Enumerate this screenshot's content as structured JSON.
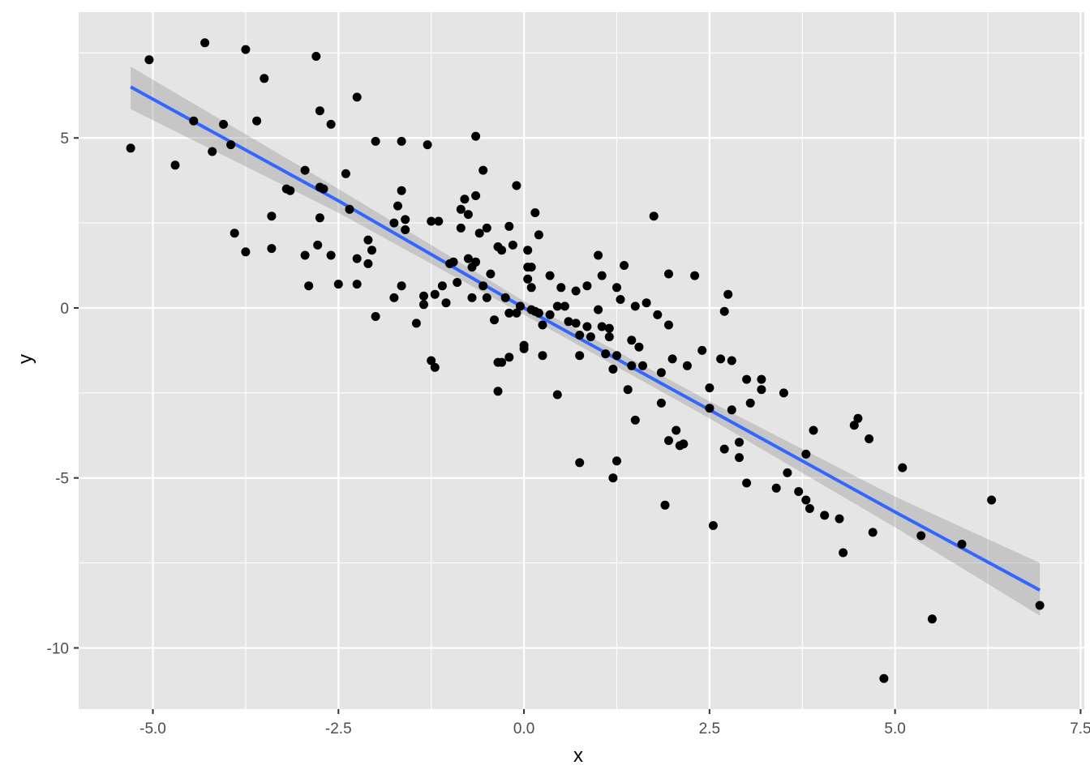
{
  "chart_data": {
    "type": "scatter",
    "title": "",
    "xlabel": "x",
    "ylabel": "y",
    "xlim": [
      -6.0,
      7.55
    ],
    "ylim": [
      -11.8,
      8.7
    ],
    "x_ticks": [
      -5.0,
      -2.5,
      0.0,
      2.5,
      5.0,
      7.5
    ],
    "x_tick_labels": [
      "-5.0",
      "-2.5",
      "0.0",
      "2.5",
      "5.0",
      "7.5"
    ],
    "y_ticks": [
      -10,
      -5,
      0,
      5
    ],
    "y_tick_labels": [
      "-10",
      "-5",
      "0",
      "5"
    ],
    "grid": true,
    "legend": "none",
    "colors": {
      "panel_background": "#e5e5e5",
      "grid_major": "#ffffff",
      "points": "#000000",
      "smooth_line": "#3366ff",
      "confidence_band": "#999999"
    },
    "smooth": {
      "method": "lm",
      "x": [
        -5.3,
        -2.5,
        0.0,
        2.5,
        5.0,
        6.95
      ],
      "y": [
        6.5,
        3.15,
        0.0,
        -3.0,
        -6.0,
        -8.3
      ],
      "ci_lower": [
        5.85,
        2.8,
        -0.2,
        -3.25,
        -6.45,
        -9.05
      ],
      "ci_upper": [
        7.1,
        3.5,
        0.2,
        -2.75,
        -5.55,
        -7.5
      ]
    },
    "series": [
      {
        "points": [
          [
            -5.3,
            4.7
          ],
          [
            -5.05,
            7.3
          ],
          [
            -4.7,
            4.2
          ],
          [
            -4.3,
            7.8
          ],
          [
            -4.45,
            5.5
          ],
          [
            -4.2,
            4.6
          ],
          [
            -4.05,
            5.4
          ],
          [
            -3.95,
            4.8
          ],
          [
            -3.9,
            2.2
          ],
          [
            -3.75,
            7.6
          ],
          [
            -3.75,
            1.65
          ],
          [
            -3.6,
            5.5
          ],
          [
            -3.5,
            6.75
          ],
          [
            -3.4,
            2.7
          ],
          [
            -3.4,
            1.75
          ],
          [
            -3.2,
            3.5
          ],
          [
            -3.15,
            3.45
          ],
          [
            -2.95,
            4.05
          ],
          [
            -2.95,
            1.55
          ],
          [
            -2.9,
            0.65
          ],
          [
            -2.8,
            7.4
          ],
          [
            -2.75,
            5.8
          ],
          [
            -2.78,
            1.85
          ],
          [
            -2.75,
            3.55
          ],
          [
            -2.75,
            2.65
          ],
          [
            -2.7,
            3.5
          ],
          [
            -2.6,
            5.4
          ],
          [
            -2.6,
            1.55
          ],
          [
            -2.5,
            0.7
          ],
          [
            -2.4,
            3.95
          ],
          [
            -2.35,
            2.9
          ],
          [
            -2.25,
            6.2
          ],
          [
            -2.25,
            1.45
          ],
          [
            -2.25,
            0.7
          ],
          [
            -2.1,
            2.0
          ],
          [
            -2.1,
            1.3
          ],
          [
            -2.05,
            1.7
          ],
          [
            -2.0,
            4.9
          ],
          [
            -2.0,
            -0.25
          ],
          [
            -1.75,
            2.5
          ],
          [
            -1.75,
            0.3
          ],
          [
            -1.7,
            3.0
          ],
          [
            -1.65,
            3.45
          ],
          [
            -1.65,
            0.65
          ],
          [
            -1.65,
            4.9
          ],
          [
            -1.6,
            2.6
          ],
          [
            -1.6,
            2.3
          ],
          [
            -1.45,
            -0.45
          ],
          [
            -1.35,
            0.1
          ],
          [
            -1.35,
            0.35
          ],
          [
            -1.3,
            4.8
          ],
          [
            -1.25,
            2.55
          ],
          [
            -1.25,
            -1.55
          ],
          [
            -1.2,
            0.4
          ],
          [
            -1.2,
            -1.75
          ],
          [
            -1.15,
            2.55
          ],
          [
            -1.1,
            0.65
          ],
          [
            -1.05,
            0.15
          ],
          [
            -1.0,
            1.3
          ],
          [
            -0.9,
            0.75
          ],
          [
            -0.95,
            1.35
          ],
          [
            -0.85,
            2.35
          ],
          [
            -0.85,
            2.9
          ],
          [
            -0.8,
            3.2
          ],
          [
            -0.75,
            2.75
          ],
          [
            -0.75,
            1.45
          ],
          [
            -0.7,
            1.2
          ],
          [
            -0.7,
            0.3
          ],
          [
            -0.65,
            5.05
          ],
          [
            -0.65,
            3.3
          ],
          [
            -0.65,
            1.35
          ],
          [
            -0.6,
            2.2
          ],
          [
            -0.55,
            4.05
          ],
          [
            -0.55,
            0.65
          ],
          [
            -0.5,
            0.3
          ],
          [
            -0.5,
            2.35
          ],
          [
            -0.45,
            1.0
          ],
          [
            -0.4,
            -0.35
          ],
          [
            -0.35,
            1.8
          ],
          [
            -0.35,
            -1.6
          ],
          [
            -0.3,
            1.7
          ],
          [
            -0.35,
            -2.45
          ],
          [
            -0.3,
            -1.6
          ],
          [
            -0.25,
            0.3
          ],
          [
            -0.2,
            -0.15
          ],
          [
            -0.2,
            2.4
          ],
          [
            -0.2,
            -1.45
          ],
          [
            -0.15,
            1.85
          ],
          [
            -0.1,
            -0.15
          ],
          [
            -0.1,
            3.6
          ],
          [
            -0.05,
            0.05
          ],
          [
            0.0,
            -1.2
          ],
          [
            0.0,
            -1.1
          ],
          [
            0.05,
            1.7
          ],
          [
            0.05,
            0.85
          ],
          [
            0.05,
            1.2
          ],
          [
            0.1,
            1.2
          ],
          [
            0.1,
            0.6
          ],
          [
            0.1,
            -0.05
          ],
          [
            0.15,
            2.8
          ],
          [
            0.15,
            -0.1
          ],
          [
            0.2,
            2.15
          ],
          [
            0.2,
            -0.15
          ],
          [
            0.25,
            -0.5
          ],
          [
            0.25,
            -1.4
          ],
          [
            0.35,
            0.95
          ],
          [
            0.35,
            -0.2
          ],
          [
            0.45,
            0.05
          ],
          [
            0.45,
            -2.55
          ],
          [
            0.5,
            0.6
          ],
          [
            0.55,
            0.05
          ],
          [
            0.6,
            -0.4
          ],
          [
            0.7,
            0.5
          ],
          [
            0.7,
            -0.45
          ],
          [
            0.75,
            -1.4
          ],
          [
            0.75,
            -4.55
          ],
          [
            0.75,
            -0.8
          ],
          [
            0.85,
            0.65
          ],
          [
            0.85,
            -0.55
          ],
          [
            0.9,
            -0.85
          ],
          [
            1.0,
            -0.05
          ],
          [
            1.0,
            1.55
          ],
          [
            1.05,
            0.95
          ],
          [
            1.05,
            -0.55
          ],
          [
            1.1,
            -1.35
          ],
          [
            1.15,
            -0.85
          ],
          [
            1.15,
            -0.6
          ],
          [
            1.2,
            -1.8
          ],
          [
            1.2,
            -5.0
          ],
          [
            1.25,
            -1.4
          ],
          [
            1.25,
            0.6
          ],
          [
            1.25,
            -4.5
          ],
          [
            1.3,
            0.25
          ],
          [
            1.35,
            1.25
          ],
          [
            1.4,
            -2.4
          ],
          [
            1.45,
            -0.95
          ],
          [
            1.45,
            -1.7
          ],
          [
            1.5,
            0.05
          ],
          [
            1.5,
            -3.3
          ],
          [
            1.55,
            -1.15
          ],
          [
            1.6,
            -1.7
          ],
          [
            1.65,
            0.15
          ],
          [
            1.75,
            2.7
          ],
          [
            1.8,
            -0.2
          ],
          [
            1.85,
            -1.9
          ],
          [
            1.85,
            -2.8
          ],
          [
            1.9,
            -5.8
          ],
          [
            1.95,
            1.0
          ],
          [
            1.95,
            -0.5
          ],
          [
            1.95,
            -3.9
          ],
          [
            2.0,
            -1.5
          ],
          [
            2.05,
            -3.6
          ],
          [
            2.1,
            -4.05
          ],
          [
            2.15,
            -4.0
          ],
          [
            2.2,
            -1.7
          ],
          [
            2.3,
            0.95
          ],
          [
            2.4,
            -1.25
          ],
          [
            2.5,
            -2.95
          ],
          [
            2.5,
            -2.35
          ],
          [
            2.55,
            -6.4
          ],
          [
            2.65,
            -1.5
          ],
          [
            2.7,
            -4.15
          ],
          [
            2.7,
            -0.1
          ],
          [
            2.75,
            0.4
          ],
          [
            2.8,
            -3.0
          ],
          [
            2.8,
            -1.55
          ],
          [
            2.9,
            -3.95
          ],
          [
            2.9,
            -4.4
          ],
          [
            3.0,
            -5.15
          ],
          [
            3.0,
            -2.1
          ],
          [
            3.05,
            -2.8
          ],
          [
            3.2,
            -2.1
          ],
          [
            3.2,
            -2.4
          ],
          [
            3.5,
            -2.5
          ],
          [
            3.4,
            -5.3
          ],
          [
            3.55,
            -4.85
          ],
          [
            3.7,
            -5.4
          ],
          [
            3.8,
            -4.3
          ],
          [
            3.8,
            -5.65
          ],
          [
            3.85,
            -5.9
          ],
          [
            3.9,
            -3.6
          ],
          [
            4.05,
            -6.1
          ],
          [
            4.25,
            -6.2
          ],
          [
            4.3,
            -7.2
          ],
          [
            4.45,
            -3.45
          ],
          [
            4.5,
            -3.25
          ],
          [
            4.65,
            -3.85
          ],
          [
            4.7,
            -6.6
          ],
          [
            4.85,
            -10.9
          ],
          [
            5.1,
            -4.7
          ],
          [
            5.35,
            -6.7
          ],
          [
            5.5,
            -9.15
          ],
          [
            5.9,
            -6.95
          ],
          [
            6.3,
            -5.65
          ],
          [
            6.95,
            -8.75
          ]
        ]
      }
    ]
  }
}
